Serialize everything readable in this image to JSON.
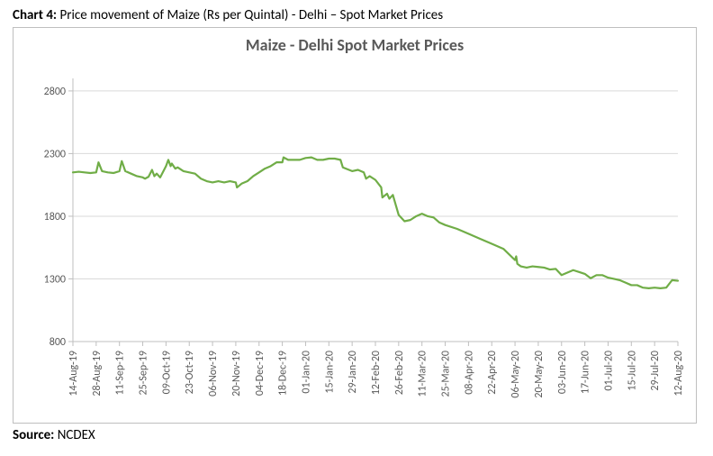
{
  "caption": {
    "label": "Chart 4:",
    "text": "Price movement of Maize (Rs per Quintal) - Delhi – Spot Market Prices"
  },
  "source": {
    "label": "Source:",
    "text": "NCDEX"
  },
  "chart": {
    "type": "line",
    "title": "Maize - Delhi Spot Market Prices",
    "title_fontsize": 18,
    "title_color": "#595959",
    "background_color": "#ffffff",
    "border_color": "#bfbfbf",
    "grid_color": "#d9d9d9",
    "axis_line_color": "#bfbfbf",
    "tick_label_color": "#595959",
    "tick_fontsize": 12,
    "line_color": "#70ad47",
    "line_width": 2.2,
    "ylim": [
      800,
      2900
    ],
    "yticks": [
      800,
      1300,
      1800,
      2300,
      2800
    ],
    "x_labels": [
      "14-Aug-19",
      "28-Aug-19",
      "11-Sep-19",
      "25-Sep-19",
      "09-Oct-19",
      "23-Oct-19",
      "06-Nov-19",
      "20-Nov-19",
      "04-Dec-19",
      "18-Dec-19",
      "01-Jan-20",
      "15-Jan-20",
      "29-Jan-20",
      "12-Feb-20",
      "26-Feb-20",
      "11-Mar-20",
      "25-Mar-20",
      "08-Apr-20",
      "22-Apr-20",
      "06-May-20",
      "20-May-20",
      "03-Jun-20",
      "17-Jun-20",
      "01-Jul-20",
      "15-Jul-20",
      "29-Jul-20",
      "12-Aug-20"
    ],
    "series": {
      "x": [
        0,
        0.25,
        0.5,
        0.75,
        1,
        1.1,
        1.25,
        1.5,
        1.75,
        2,
        2.1,
        2.25,
        2.5,
        2.75,
        3,
        3.1,
        3.25,
        3.4,
        3.5,
        3.6,
        3.75,
        4,
        4.1,
        4.2,
        4.25,
        4.4,
        4.5,
        4.75,
        5,
        5.25,
        5.5,
        5.75,
        6,
        6.25,
        6.5,
        6.75,
        7,
        7.05,
        7.25,
        7.5,
        7.75,
        8,
        8.25,
        8.5,
        8.75,
        9,
        9.05,
        9.25,
        9.5,
        9.75,
        10,
        10.25,
        10.5,
        10.75,
        11,
        11.25,
        11.5,
        11.6,
        12,
        12.25,
        12.5,
        12.6,
        12.75,
        13,
        13.25,
        13.3,
        13.5,
        13.6,
        13.75,
        14,
        14.25,
        14.5,
        14.75,
        15,
        15.25,
        15.5,
        15.75,
        16,
        16.5,
        17,
        17.5,
        18,
        18.5,
        19,
        19.05,
        19.1,
        19.25,
        19.5,
        19.75,
        20,
        20.25,
        20.5,
        20.75,
        21,
        21.25,
        21.5,
        21.75,
        22,
        22.25,
        22.5,
        22.75,
        23,
        23.25,
        23.5,
        23.75,
        24,
        24.25,
        24.5,
        24.75,
        25,
        25.25,
        25.5,
        25.75,
        26
      ],
      "y": [
        2150,
        2155,
        2150,
        2145,
        2150,
        2230,
        2160,
        2150,
        2145,
        2160,
        2240,
        2160,
        2140,
        2120,
        2110,
        2100,
        2115,
        2170,
        2120,
        2140,
        2110,
        2200,
        2250,
        2200,
        2220,
        2180,
        2190,
        2160,
        2150,
        2140,
        2100,
        2080,
        2070,
        2080,
        2070,
        2080,
        2070,
        2030,
        2060,
        2080,
        2120,
        2150,
        2180,
        2200,
        2230,
        2230,
        2270,
        2250,
        2250,
        2250,
        2265,
        2270,
        2250,
        2250,
        2260,
        2260,
        2250,
        2190,
        2160,
        2170,
        2150,
        2100,
        2120,
        2090,
        2030,
        1950,
        1980,
        1940,
        1970,
        1810,
        1760,
        1770,
        1800,
        1820,
        1800,
        1790,
        1750,
        1730,
        1700,
        1660,
        1620,
        1580,
        1540,
        1450,
        1480,
        1420,
        1400,
        1390,
        1400,
        1395,
        1390,
        1375,
        1380,
        1330,
        1350,
        1370,
        1355,
        1340,
        1305,
        1330,
        1330,
        1310,
        1300,
        1290,
        1270,
        1250,
        1250,
        1230,
        1225,
        1230,
        1225,
        1230,
        1290,
        1285
      ]
    }
  }
}
